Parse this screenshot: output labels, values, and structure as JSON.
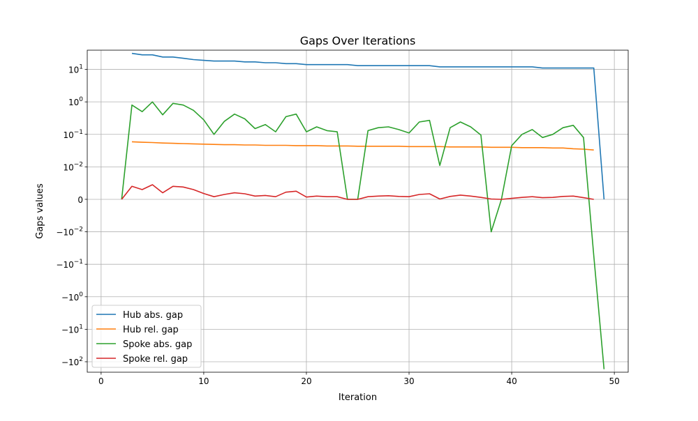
{
  "chart_data": {
    "type": "line",
    "title": "Gaps Over Iterations",
    "xlabel": "Iteration",
    "ylabel": "Gaps values",
    "yscale": "symlog",
    "linthresh": 0.01,
    "xlim": [
      -1.35,
      51.35
    ],
    "ylim": [
      -210,
      39
    ],
    "xticks": [
      0,
      10,
      20,
      30,
      40,
      50
    ],
    "yticks": [
      {
        "value": 10,
        "base": "10",
        "exp": "1"
      },
      {
        "value": 1,
        "base": "10",
        "exp": "0"
      },
      {
        "value": 0.1,
        "base": "10",
        "exp": "−1"
      },
      {
        "value": 0.01,
        "base": "10",
        "exp": "−2"
      },
      {
        "value": 0,
        "base": "0",
        "exp": ""
      },
      {
        "value": -0.01,
        "base": "−10",
        "exp": "−2"
      },
      {
        "value": -0.1,
        "base": "−10",
        "exp": "−1"
      },
      {
        "value": -1,
        "base": "−10",
        "exp": "0"
      },
      {
        "value": -10,
        "base": "−10",
        "exp": "1"
      },
      {
        "value": -100,
        "base": "−10",
        "exp": "2"
      }
    ],
    "grid": true,
    "legend_position": "lower-left",
    "series": [
      {
        "name": "Hub abs. gap",
        "color": "#1f77b4",
        "x": [
          3,
          4,
          5,
          6,
          7,
          8,
          9,
          10,
          11,
          12,
          13,
          14,
          15,
          16,
          17,
          18,
          19,
          20,
          21,
          22,
          23,
          24,
          25,
          26,
          27,
          28,
          29,
          30,
          31,
          32,
          33,
          34,
          35,
          36,
          37,
          38,
          39,
          40,
          41,
          42,
          43,
          44,
          45,
          46,
          47,
          48,
          49
        ],
        "y": [
          31,
          28,
          28,
          24,
          24,
          22,
          20,
          19,
          18,
          18,
          18,
          17,
          17,
          16,
          16,
          15,
          15,
          14,
          14,
          14,
          14,
          14,
          13,
          13,
          13,
          13,
          13,
          13,
          13,
          13,
          12,
          12,
          12,
          12,
          12,
          12,
          12,
          12,
          12,
          12,
          11,
          11,
          11,
          11,
          11,
          11,
          0
        ]
      },
      {
        "name": "Hub rel. gap",
        "color": "#ff7f0e",
        "x": [
          3,
          4,
          5,
          6,
          7,
          8,
          9,
          10,
          11,
          12,
          13,
          14,
          15,
          16,
          17,
          18,
          19,
          20,
          21,
          22,
          23,
          24,
          25,
          26,
          27,
          28,
          29,
          30,
          31,
          32,
          33,
          34,
          35,
          36,
          37,
          38,
          39,
          40,
          41,
          42,
          43,
          44,
          45,
          46,
          47,
          48
        ],
        "y": [
          0.059,
          0.057,
          0.056,
          0.054,
          0.053,
          0.052,
          0.051,
          0.05,
          0.049,
          0.048,
          0.048,
          0.047,
          0.047,
          0.046,
          0.046,
          0.046,
          0.045,
          0.045,
          0.045,
          0.044,
          0.044,
          0.044,
          0.043,
          0.043,
          0.043,
          0.043,
          0.043,
          0.042,
          0.042,
          0.042,
          0.042,
          0.041,
          0.041,
          0.041,
          0.041,
          0.04,
          0.04,
          0.04,
          0.039,
          0.039,
          0.039,
          0.038,
          0.038,
          0.036,
          0.035,
          0.033
        ]
      },
      {
        "name": "Spoke abs. gap",
        "color": "#2ca02c",
        "x": [
          2,
          3,
          4,
          5,
          6,
          7,
          8,
          9,
          10,
          11,
          12,
          13,
          14,
          15,
          16,
          17,
          18,
          19,
          20,
          21,
          22,
          23,
          24,
          25,
          26,
          27,
          28,
          29,
          30,
          31,
          32,
          33,
          34,
          35,
          36,
          37,
          38,
          39,
          40,
          41,
          42,
          43,
          44,
          45,
          46,
          47,
          48,
          49
        ],
        "y": [
          0,
          0.8,
          0.5,
          1.0,
          0.4,
          0.9,
          0.8,
          0.55,
          0.28,
          0.1,
          0.25,
          0.42,
          0.3,
          0.15,
          0.2,
          0.12,
          0.35,
          0.42,
          0.12,
          0.17,
          0.13,
          0.12,
          0,
          0,
          0.13,
          0.16,
          0.17,
          0.14,
          0.11,
          0.24,
          0.27,
          0.011,
          0.16,
          0.24,
          0.17,
          0.095,
          -0.01,
          0,
          0.045,
          0.1,
          0.14,
          0.08,
          0.1,
          0.16,
          0.19,
          0.08,
          -0.055,
          -170
        ]
      },
      {
        "name": "Spoke rel. gap",
        "color": "#d62728",
        "x": [
          2,
          3,
          4,
          5,
          6,
          7,
          8,
          9,
          10,
          11,
          12,
          13,
          14,
          15,
          16,
          17,
          18,
          19,
          20,
          21,
          22,
          23,
          24,
          25,
          26,
          27,
          28,
          29,
          30,
          31,
          32,
          33,
          34,
          35,
          36,
          37,
          38,
          39,
          40,
          41,
          42,
          43,
          44,
          45,
          46,
          47,
          48
        ],
        "y": [
          0,
          0.004,
          0.003,
          0.0045,
          0.002,
          0.004,
          0.0038,
          0.003,
          0.0018,
          0.0008,
          0.0015,
          0.002,
          0.0017,
          0.001,
          0.0012,
          0.0008,
          0.0022,
          0.0025,
          0.0007,
          0.001,
          0.0008,
          0.0008,
          0,
          0,
          0.0008,
          0.001,
          0.0011,
          0.0009,
          0.0008,
          0.0015,
          0.0017,
          0.0001,
          0.0009,
          0.0013,
          0.001,
          0.0006,
          0.0001,
          0,
          0.0003,
          0.0006,
          0.0008,
          0.0005,
          0.0006,
          0.0009,
          0.001,
          0.0005,
          0
        ]
      }
    ]
  }
}
